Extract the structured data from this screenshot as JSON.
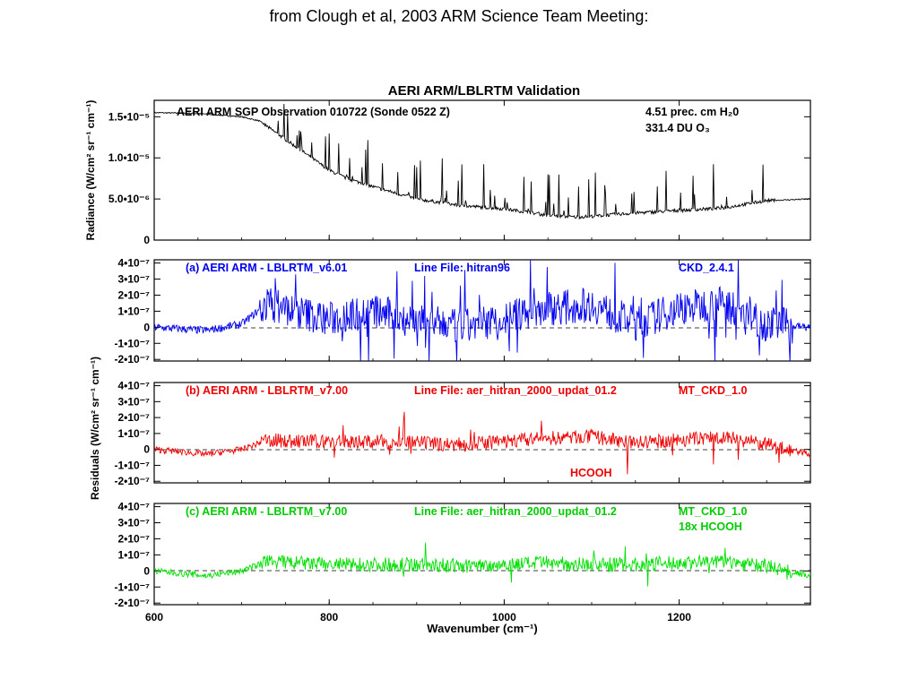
{
  "slide": {
    "caption": "from Clough et al, 2003 ARM Science Team Meeting:"
  },
  "figure": {
    "title": "AERI ARM/LBLRTM Validation",
    "xlabel": "Wavenumber (cm⁻¹)",
    "ylabel_top": "Radiance (W/cm² sr⁻¹ cm⁻¹)",
    "ylabel_bottom": "Residuals (W/cm² sr⁻¹ cm⁻¹)",
    "x_ticks": [
      "600",
      "800",
      "1000",
      "1200"
    ]
  },
  "chart_data": [
    {
      "type": "line",
      "panel": "radiance",
      "title": "AERI  ARM SGP Observation 010722  (Sonde 0522 Z)",
      "annotations": [
        "4.51 prec. cm H₂0",
        "331.4 DU O₃"
      ],
      "color": "#000000",
      "xlim": [
        600,
        1350
      ],
      "ylim": [
        0,
        1.7e-05
      ],
      "ytick_values": [
        0,
        5e-06,
        1e-05,
        1.5e-05
      ],
      "ytick_labels": [
        "0",
        "5.0•10⁻⁶",
        "1.0•10⁻⁵",
        "1.5•10⁻⁵"
      ],
      "x": [
        600,
        650,
        700,
        720,
        740,
        760,
        780,
        800,
        820,
        850,
        880,
        900,
        950,
        1000,
        1020,
        1050,
        1080,
        1100,
        1150,
        1200,
        1250,
        1300,
        1350
      ],
      "y": [
        1.55e-05,
        1.54e-05,
        1.5e-05,
        1.45e-05,
        1.3e-05,
        1.15e-05,
        1e-05,
        8.5e-06,
        7.5e-06,
        6.5e-06,
        5.6e-06,
        5e-06,
        4.2e-06,
        3.8e-06,
        3.5e-06,
        3e-06,
        2.8e-06,
        2.9e-06,
        3.3e-06,
        3.6e-06,
        3.9e-06,
        4.8e-06,
        5e-06
      ]
    },
    {
      "type": "line",
      "panel": "a",
      "title": "(a)  AERI  ARM - LBLRTM_v6.01",
      "line_file": "Line File: hitran96",
      "continuum": "CKD_2.4.1",
      "color": "#0000ee",
      "xlim": [
        600,
        1350
      ],
      "ylim": [
        -2.1e-07,
        4.2e-07
      ],
      "ytick_values": [
        -2e-07,
        -1e-07,
        0,
        1e-07,
        2e-07,
        3e-07,
        4e-07
      ],
      "ytick_labels": [
        "-2•10⁻⁷",
        "-1•10⁻⁷",
        "0",
        "1•10⁻⁷",
        "2•10⁻⁷",
        "3•10⁻⁷",
        "4•10⁻⁷"
      ],
      "x": [
        600,
        660,
        700,
        730,
        760,
        800,
        850,
        900,
        950,
        1000,
        1050,
        1100,
        1150,
        1200,
        1250,
        1300,
        1350
      ],
      "y": [
        0,
        -2e-08,
        2e-08,
        1.5e-07,
        1e-07,
        5e-08,
        1e-07,
        4e-08,
        0,
        5e-08,
        1.2e-07,
        1.4e-07,
        2e-08,
        1.2e-07,
        1.5e-07,
        2e-08,
        0
      ]
    },
    {
      "type": "line",
      "panel": "b",
      "title": "(b)  AERI  ARM - LBLRTM_v7.00",
      "line_file": "Line File: aer_hitran_2000_updat_01.2",
      "continuum": "MT_CKD_1.0",
      "label": "HCOOH",
      "color": "#ee0000",
      "xlim": [
        600,
        1350
      ],
      "ylim": [
        -2.1e-07,
        4.2e-07
      ],
      "ytick_values": [
        -2e-07,
        -1e-07,
        0,
        1e-07,
        2e-07,
        3e-07,
        4e-07
      ],
      "ytick_labels": [
        "-2•10⁻⁷",
        "-1•10⁻⁷",
        "0",
        "1•10⁻⁷",
        "2•10⁻⁷",
        "3•10⁻⁷",
        "4•10⁻⁷"
      ],
      "x": [
        600,
        660,
        700,
        730,
        760,
        800,
        850,
        900,
        950,
        1000,
        1050,
        1100,
        1150,
        1200,
        1250,
        1300,
        1350
      ],
      "y": [
        0,
        -3e-08,
        0,
        6e-08,
        5e-08,
        5e-08,
        5e-08,
        4e-08,
        3e-08,
        5e-08,
        7e-08,
        8e-08,
        4e-08,
        6e-08,
        8e-08,
        3e-08,
        -3e-08
      ]
    },
    {
      "type": "line",
      "panel": "c",
      "title": "(c)  AERI  ARM - LBLRTM_v7.00",
      "line_file": "Line File: aer_hitran_2000_updat_01.2",
      "continuum": "MT_CKD_1.0",
      "continuum_note": "18x HCOOH",
      "color": "#00e000",
      "xlim": [
        600,
        1350
      ],
      "ylim": [
        -2.1e-07,
        4.2e-07
      ],
      "ytick_values": [
        -2e-07,
        -1e-07,
        0,
        1e-07,
        2e-07,
        3e-07,
        4e-07
      ],
      "ytick_labels": [
        "-2•10⁻⁷",
        "-1•10⁻⁷",
        "0",
        "1•10⁻⁷",
        "2•10⁻⁷",
        "3•10⁻⁷",
        "4•10⁻⁷"
      ],
      "x": [
        600,
        660,
        700,
        730,
        760,
        800,
        850,
        900,
        950,
        1000,
        1050,
        1100,
        1150,
        1200,
        1250,
        1300,
        1350
      ],
      "y": [
        0,
        -3e-08,
        0,
        6e-08,
        5e-08,
        4e-08,
        4e-08,
        4e-08,
        3e-08,
        4e-08,
        5e-08,
        4e-08,
        4e-08,
        5e-08,
        6e-08,
        3e-08,
        -3e-08
      ]
    }
  ]
}
